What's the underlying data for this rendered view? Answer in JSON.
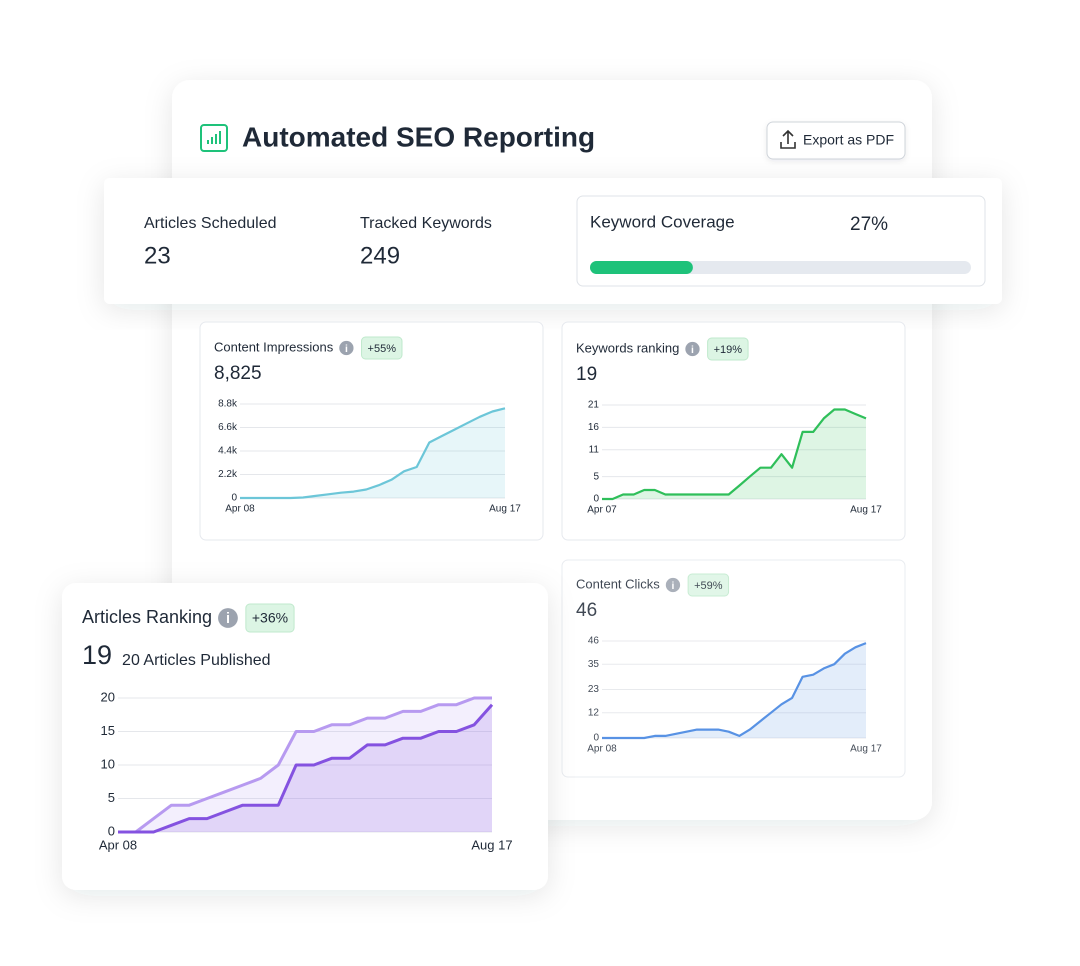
{
  "header": {
    "title": "Automated SEO Reporting",
    "button": "Export as PDF"
  },
  "stats": [
    {
      "label": "Articles Scheduled",
      "value": 23
    },
    {
      "label": "Tracked Keywords",
      "value": 249
    }
  ],
  "coverage": {
    "label": "Keyword Coverage",
    "value": 27,
    "value_label": "27%",
    "color": "#1ec27a"
  },
  "chart_data": [
    {
      "type": "area",
      "title": "Content Impressions",
      "badge": "+55%",
      "total": "8,825",
      "categories": [
        "Apr 08",
        null,
        null,
        null,
        null,
        null,
        null,
        null,
        null,
        null,
        null,
        null,
        null,
        null,
        null,
        null,
        null,
        null,
        null,
        null,
        null,
        "Aug 17"
      ],
      "series": [
        {
          "color": "#6cc6d8",
          "values": [
            0,
            0,
            0,
            0,
            0,
            50,
            200,
            350,
            500,
            600,
            800,
            1200,
            1700,
            2500,
            2900,
            5200,
            5800,
            6400,
            7000,
            7600,
            8100,
            8400
          ]
        }
      ],
      "ylim": [
        0,
        8800
      ],
      "yticks": [
        0,
        {
          "value": 2200,
          "label": "2.2k"
        },
        {
          "value": 4400,
          "label": "4.4k"
        },
        {
          "value": 6600,
          "label": "6.6k"
        },
        {
          "value": 8800,
          "label": "8.8k"
        }
      ]
    },
    {
      "type": "area",
      "title": "Keywords ranking",
      "badge": "+19%",
      "total": "19",
      "categories": [
        "Apr 07",
        null,
        null,
        null,
        null,
        null,
        null,
        null,
        null,
        null,
        null,
        null,
        null,
        null,
        null,
        null,
        null,
        null,
        null,
        null,
        null,
        null,
        null,
        null,
        null,
        "Aug 17"
      ],
      "series": [
        {
          "color": "#2fbf5a",
          "values": [
            0,
            0,
            1,
            1,
            2,
            2,
            1,
            1,
            1,
            1,
            1,
            1,
            1,
            3,
            5,
            7,
            7,
            10,
            7,
            15,
            15,
            18,
            20,
            20,
            19,
            18
          ]
        }
      ],
      "ylim": [
        0,
        21
      ],
      "yticks": [
        0,
        5,
        11,
        16,
        21
      ]
    },
    {
      "type": "area",
      "title": "Content Clicks",
      "badge": "+59%",
      "total": "46",
      "categories": [
        "Apr 08",
        null,
        null,
        null,
        null,
        null,
        null,
        null,
        null,
        null,
        null,
        null,
        null,
        null,
        null,
        null,
        null,
        null,
        null,
        null,
        null,
        null,
        null,
        null,
        null,
        "Aug 17"
      ],
      "series": [
        {
          "color": "#3b7fe0",
          "values": [
            0,
            0,
            0,
            0,
            0,
            1,
            1,
            2,
            3,
            4,
            4,
            4,
            3,
            1,
            4,
            8,
            12,
            16,
            19,
            29,
            30,
            33,
            35,
            40,
            43,
            45
          ]
        }
      ],
      "ylim": [
        0,
        46
      ],
      "yticks": [
        0,
        12,
        23,
        35,
        46
      ]
    },
    {
      "type": "area",
      "title": "Articles Ranking",
      "badge": "+36%",
      "total": "19",
      "subtitle": "20 Articles Published",
      "categories": [
        "Apr 08",
        null,
        null,
        null,
        null,
        null,
        null,
        null,
        null,
        null,
        null,
        null,
        null,
        null,
        null,
        null,
        null,
        null,
        null,
        null,
        null,
        "Aug 17"
      ],
      "series": [
        {
          "color": "#b79af0",
          "values": [
            0,
            0,
            2,
            4,
            4,
            5,
            6,
            7,
            8,
            10,
            15,
            15,
            16,
            16,
            17,
            17,
            18,
            18,
            19,
            19,
            20,
            20
          ]
        },
        {
          "color": "#8452e0",
          "values": [
            0,
            0,
            0,
            1,
            2,
            2,
            3,
            4,
            4,
            4,
            10,
            10,
            11,
            11,
            13,
            13,
            14,
            14,
            15,
            15,
            16,
            19
          ]
        }
      ],
      "ylim": [
        0,
        20
      ],
      "yticks": [
        0,
        5,
        10,
        15,
        20
      ]
    }
  ]
}
